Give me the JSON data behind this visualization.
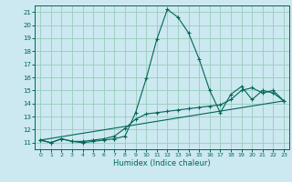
{
  "xlabel": "Humidex (Indice chaleur)",
  "bg_color": "#cce8f0",
  "grid_color": "#99ccbb",
  "line_color": "#006655",
  "xlim": [
    -0.5,
    23.5
  ],
  "ylim": [
    10.5,
    21.5
  ],
  "yticks": [
    11,
    12,
    13,
    14,
    15,
    16,
    17,
    18,
    19,
    20,
    21
  ],
  "xticks": [
    0,
    1,
    2,
    3,
    4,
    5,
    6,
    7,
    8,
    9,
    10,
    11,
    12,
    13,
    14,
    15,
    16,
    17,
    18,
    19,
    20,
    21,
    22,
    23
  ],
  "line1_x": [
    0,
    1,
    2,
    3,
    4,
    5,
    6,
    7,
    8,
    9,
    10,
    11,
    12,
    13,
    14,
    15,
    16,
    17,
    18,
    19,
    20,
    21,
    22,
    23
  ],
  "line1_y": [
    11.2,
    11.0,
    11.3,
    11.1,
    11.0,
    11.1,
    11.2,
    11.3,
    11.5,
    13.3,
    15.9,
    18.9,
    21.2,
    20.6,
    19.4,
    17.4,
    15.0,
    13.3,
    14.7,
    15.3,
    14.3,
    15.0,
    14.8,
    14.2
  ],
  "line2_x": [
    0,
    1,
    2,
    3,
    4,
    5,
    6,
    7,
    8,
    9,
    10,
    11,
    12,
    13,
    14,
    15,
    16,
    17,
    18,
    19,
    20,
    21,
    22,
    23
  ],
  "line2_y": [
    11.2,
    11.0,
    11.3,
    11.1,
    11.1,
    11.2,
    11.3,
    11.5,
    12.1,
    12.8,
    13.2,
    13.3,
    13.4,
    13.5,
    13.6,
    13.7,
    13.8,
    13.9,
    14.3,
    15.0,
    15.2,
    14.8,
    15.0,
    14.2
  ],
  "line3_x": [
    0,
    23
  ],
  "line3_y": [
    11.2,
    14.2
  ]
}
